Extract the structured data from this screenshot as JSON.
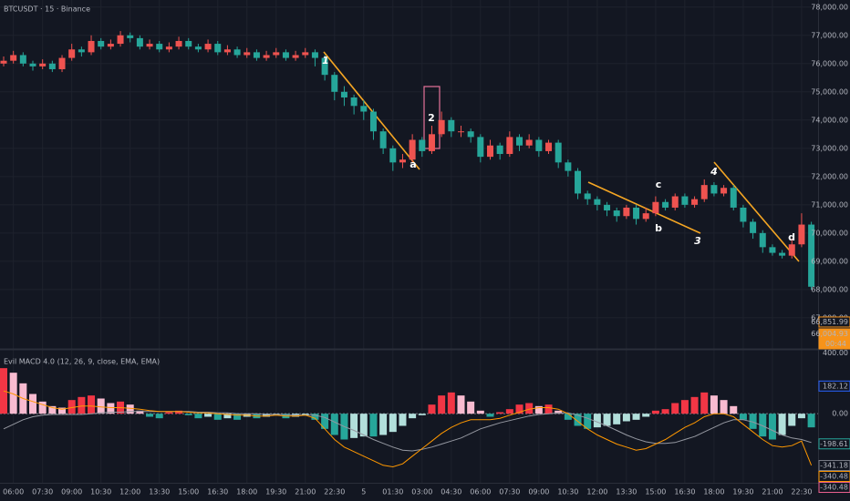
{
  "chart_data": [
    {
      "type": "candlestick",
      "title": "BTCUSDT · 15 · Binance",
      "categories": [
        null,
        "06:00",
        null,
        null,
        "07:30",
        null,
        null,
        "09:00",
        null,
        null,
        "10:30",
        null,
        null,
        "12:00",
        null,
        null,
        "13:30",
        null,
        null,
        "15:00",
        null,
        null,
        "16:30",
        null,
        null,
        "18:00",
        null,
        null,
        "19:30",
        null,
        null,
        "21:00",
        null,
        null,
        "22:30",
        null,
        null,
        "5",
        null,
        null,
        "01:30",
        null,
        null,
        "03:00",
        null,
        null,
        "04:30",
        null,
        null,
        "06:00",
        null,
        null,
        "07:30",
        null,
        null,
        "09:00",
        null,
        null,
        "10:30",
        null,
        null,
        "12:00",
        null,
        null,
        "13:30",
        null,
        null,
        "15:00",
        null,
        null,
        "16:30",
        null,
        null,
        "18:00",
        null,
        null,
        "19:30",
        null,
        null,
        "21:00",
        null,
        null,
        "22:30",
        null
      ],
      "open": [
        76000,
        76100,
        76300,
        76000,
        75900,
        76000,
        75800,
        76200,
        76500,
        76400,
        76800,
        76600,
        76700,
        77000,
        76900,
        76600,
        76700,
        76500,
        76600,
        76800,
        76600,
        76500,
        76700,
        76400,
        76500,
        76300,
        76400,
        76200,
        76300,
        76400,
        76200,
        76300,
        76400,
        76200,
        75600,
        75000,
        74800,
        74500,
        74300,
        73600,
        73000,
        72500,
        72600,
        73300,
        72900,
        73500,
        74000,
        73600,
        73600,
        73400,
        72700,
        73100,
        72800,
        73400,
        73100,
        73300,
        72900,
        73200,
        72500,
        72200,
        71400,
        71200,
        71000,
        70800,
        70600,
        70900,
        70500,
        70700,
        71100,
        70900,
        71300,
        71000,
        71200,
        71700,
        71400,
        71600,
        70900,
        70400,
        70000,
        69500,
        69300,
        69200,
        69600,
        70300
      ],
      "high": [
        76250,
        76450,
        76400,
        76100,
        76150,
        76100,
        76300,
        76700,
        76600,
        77000,
        76900,
        76850,
        77150,
        77100,
        77000,
        76850,
        76800,
        76750,
        76950,
        76900,
        76700,
        76850,
        76800,
        76650,
        76600,
        76550,
        76500,
        76450,
        76550,
        76500,
        76450,
        76550,
        76500,
        76300,
        75700,
        75200,
        74900,
        74700,
        74400,
        73700,
        73100,
        72800,
        73500,
        73400,
        73800,
        74300,
        74100,
        73800,
        73700,
        73500,
        73300,
        73200,
        73600,
        73500,
        73500,
        73400,
        73300,
        73300,
        72600,
        72300,
        71500,
        71300,
        71100,
        70900,
        71000,
        71000,
        70900,
        71300,
        71200,
        71400,
        71400,
        71300,
        71900,
        71800,
        71700,
        71700,
        71000,
        70500,
        70100,
        69600,
        69400,
        69800,
        70700,
        70400
      ],
      "low": [
        75900,
        76000,
        75900,
        75750,
        75800,
        75700,
        75700,
        76100,
        76250,
        76300,
        76500,
        76500,
        76600,
        76750,
        76500,
        76500,
        76400,
        76400,
        76500,
        76500,
        76400,
        76400,
        76300,
        76300,
        76200,
        76200,
        76100,
        76100,
        76200,
        76100,
        76100,
        76200,
        75900,
        75400,
        74700,
        74500,
        74200,
        74000,
        73300,
        72800,
        72200,
        72300,
        72500,
        72700,
        72800,
        73400,
        73400,
        73400,
        73200,
        72500,
        72600,
        72600,
        72700,
        72900,
        73000,
        72700,
        72800,
        72300,
        72000,
        71200,
        71000,
        70800,
        70600,
        70400,
        70500,
        70300,
        70400,
        70600,
        70800,
        70800,
        70900,
        70900,
        71100,
        71300,
        71300,
        70800,
        70200,
        69800,
        69300,
        69200,
        69100,
        69100,
        69500,
        68000
      ],
      "close": [
        76100,
        76300,
        76000,
        75900,
        76000,
        75800,
        76200,
        76500,
        76400,
        76800,
        76600,
        76700,
        77000,
        76900,
        76600,
        76700,
        76500,
        76600,
        76800,
        76600,
        76500,
        76700,
        76400,
        76500,
        76300,
        76400,
        76200,
        76300,
        76400,
        76200,
        76300,
        76400,
        76200,
        75600,
        75000,
        74800,
        74500,
        74300,
        73600,
        73000,
        72500,
        72600,
        73300,
        72900,
        73500,
        74000,
        73600,
        73600,
        73400,
        72700,
        73100,
        72800,
        73400,
        73100,
        73300,
        72900,
        73200,
        72500,
        72200,
        71400,
        71200,
        71000,
        70800,
        70600,
        70900,
        70500,
        70700,
        71100,
        70900,
        71300,
        71000,
        71200,
        71700,
        71400,
        71600,
        70900,
        70400,
        70000,
        69500,
        69300,
        69200,
        69600,
        70300,
        68100
      ],
      "up_color": "#ef5350",
      "down_color": "#26a69a",
      "ylim": [
        65900,
        78250
      ],
      "yticks": [
        {
          "value": 67000,
          "label": "67,000.00"
        },
        {
          "value": 68000,
          "label": "68,000.00"
        },
        {
          "value": 69000,
          "label": "69,000.00"
        },
        {
          "value": 70000,
          "label": "70,000.00"
        },
        {
          "value": 71000,
          "label": "71,000.00"
        },
        {
          "value": 72000,
          "label": "72,000.00"
        },
        {
          "value": 73000,
          "label": "73,000.00"
        },
        {
          "value": 74000,
          "label": "74,000.00"
        },
        {
          "value": 75000,
          "label": "75,000.00"
        },
        {
          "value": 76000,
          "label": "76,000.00"
        },
        {
          "value": 77000,
          "label": "77,000.00"
        },
        {
          "value": 78000,
          "label": "78,000.00"
        }
      ],
      "grid": true,
      "annotations": [
        "1",
        "a",
        "2",
        "c",
        "b",
        "3",
        "4",
        "d"
      ],
      "price_tags": [
        {
          "value": 66851.99,
          "label": "66,851.99",
          "color": "#f7931a"
        },
        {
          "value": 66004.93,
          "label": "66,004.93",
          "sublabel": "00:44",
          "color": "#f7931a"
        }
      ]
    },
    {
      "type": "macd",
      "title": "Evil MACD 4.0 (12, 26, 9, close, EMA, EMA)",
      "histogram": [
        300,
        270,
        200,
        130,
        80,
        50,
        40,
        90,
        110,
        120,
        100,
        70,
        80,
        60,
        20,
        -20,
        -30,
        10,
        20,
        -10,
        -30,
        -20,
        -40,
        -30,
        -40,
        -20,
        -30,
        -20,
        -10,
        -30,
        -20,
        -10,
        -40,
        -100,
        -140,
        -170,
        -160,
        -150,
        -150,
        -140,
        -120,
        -80,
        -30,
        -10,
        60,
        120,
        140,
        120,
        80,
        20,
        -20,
        10,
        30,
        60,
        70,
        50,
        60,
        20,
        -40,
        -80,
        -100,
        -90,
        -80,
        -70,
        -50,
        -40,
        -20,
        20,
        30,
        70,
        90,
        110,
        140,
        120,
        90,
        50,
        -40,
        -100,
        -150,
        -170,
        -140,
        -80,
        -30,
        -90
      ],
      "macd": [
        150,
        130,
        100,
        80,
        60,
        40,
        30,
        40,
        50,
        50,
        45,
        40,
        40,
        35,
        30,
        20,
        15,
        15,
        15,
        10,
        5,
        5,
        0,
        -5,
        -10,
        -10,
        -15,
        -15,
        -10,
        -15,
        -15,
        -10,
        -30,
        -100,
        -170,
        -220,
        -250,
        -280,
        -310,
        -340,
        -350,
        -330,
        -280,
        -230,
        -180,
        -130,
        -90,
        -60,
        -40,
        -40,
        -40,
        -30,
        -10,
        10,
        30,
        40,
        40,
        30,
        0,
        -50,
        -100,
        -140,
        -170,
        -200,
        -220,
        -240,
        -230,
        -200,
        -170,
        -130,
        -90,
        -60,
        -20,
        0,
        0,
        -20,
        -70,
        -120,
        -170,
        -210,
        -220,
        -210,
        -180,
        -340
      ],
      "signal": [
        -100,
        -70,
        -40,
        -20,
        -10,
        -5,
        -5,
        -5,
        -5,
        0,
        5,
        10,
        10,
        15,
        15,
        15,
        15,
        15,
        15,
        15,
        10,
        10,
        5,
        5,
        0,
        0,
        0,
        -5,
        -5,
        -5,
        -10,
        -10,
        -10,
        -25,
        -55,
        -85,
        -110,
        -140,
        -170,
        -195,
        -220,
        -240,
        -245,
        -235,
        -220,
        -200,
        -180,
        -160,
        -130,
        -100,
        -80,
        -60,
        -45,
        -30,
        -15,
        -5,
        0,
        5,
        5,
        -10,
        -30,
        -55,
        -80,
        -110,
        -140,
        -165,
        -185,
        -195,
        -195,
        -190,
        -170,
        -150,
        -120,
        -90,
        -60,
        -40,
        -40,
        -55,
        -80,
        -110,
        -140,
        -160,
        -170,
        -190
      ],
      "colors": {
        "rise_pos": "#f23645",
        "fall_pos": "#f8bbd0",
        "fall_neg": "#26a69a",
        "rise_neg": "#b2dfdb",
        "macd": "#ff9800",
        "signal": "#9598a1"
      },
      "ylim": [
        -455,
        415
      ],
      "yticks": [
        {
          "value": 400,
          "label": "400.00"
        },
        {
          "value": 0,
          "label": "0.00"
        }
      ],
      "value_tags": [
        {
          "value": 182.12,
          "color": "#2962ff"
        },
        {
          "value": -198.61,
          "color": "#26a69a"
        },
        {
          "value": -341.18,
          "color": "#787b86"
        },
        {
          "value": -340.48,
          "color": "#ff9800"
        },
        {
          "value": -340.48,
          "color": "#f06292"
        }
      ]
    }
  ]
}
